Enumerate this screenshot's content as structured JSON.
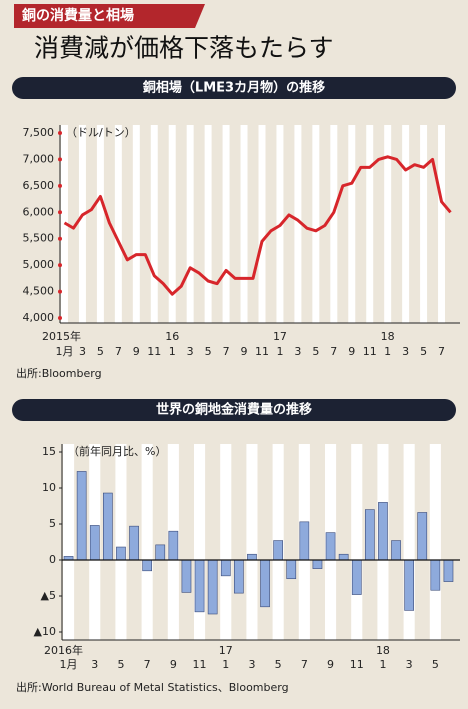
{
  "header": {
    "tag": "銅の消費量と相場",
    "title": "消費減が価格下落もたらす"
  },
  "chart_data": [
    {
      "type": "line",
      "title": "銅相場（LME3カ月物）の推移",
      "y_unit": "（ドル/トン）",
      "source": "出所:Bloomberg",
      "year_labels": [
        "2015年",
        "16",
        "17",
        "18"
      ],
      "categories": [
        "1月",
        null,
        "3",
        null,
        "5",
        null,
        "7",
        null,
        "9",
        null,
        "11",
        null,
        "1",
        null,
        "3",
        null,
        "5",
        null,
        "7",
        null,
        "9",
        null,
        "11",
        null,
        "1",
        null,
        "3",
        null,
        "5",
        null,
        "7",
        null,
        "9",
        null,
        "11",
        null,
        "1",
        null,
        "3",
        null,
        "5",
        null,
        "7",
        null
      ],
      "series": [
        {
          "name": "LME3カ月物",
          "color": "#d7262b",
          "values": [
            5800,
            5700,
            5950,
            6050,
            6300,
            5800,
            5450,
            5100,
            5200,
            5200,
            4800,
            4650,
            4450,
            4600,
            4950,
            4850,
            4700,
            4650,
            4900,
            4750,
            4750,
            4750,
            5450,
            5650,
            5750,
            5950,
            5850,
            5700,
            5650,
            5750,
            6000,
            6500,
            6550,
            6850,
            6850,
            7000,
            7050,
            7000,
            6800,
            6900,
            6850,
            7000,
            6200,
            6000
          ]
        }
      ],
      "ylim": [
        4000,
        7500
      ],
      "yticks": [
        {
          "value": 4000,
          "label": "4,000"
        },
        {
          "value": 4500,
          "label": "4,500"
        },
        {
          "value": 5000,
          "label": "5,000"
        },
        {
          "value": 5500,
          "label": "5,500"
        },
        {
          "value": 6000,
          "label": "6,000"
        },
        {
          "value": 6500,
          "label": "6,500"
        },
        {
          "value": 7000,
          "label": "7,000"
        },
        {
          "value": 7500,
          "label": "7,500"
        }
      ]
    },
    {
      "type": "bar",
      "title": "世界の銅地金消費量の推移",
      "y_unit": "（前年同月比、%）",
      "source": "出所:World Bureau of Metal Statistics、Bloomberg",
      "year_labels": [
        "2016年",
        "17",
        "18"
      ],
      "categories": [
        "1月",
        null,
        "3",
        null,
        "5",
        null,
        "7",
        null,
        "9",
        null,
        "11",
        null,
        "1",
        null,
        "3",
        null,
        "5",
        null,
        "7",
        null,
        "9",
        null,
        "11",
        null,
        "1",
        null,
        "3",
        null,
        "5",
        null
      ],
      "series": [
        {
          "name": "前年同月比",
          "color": "#8eaadc",
          "values": [
            0.5,
            12.3,
            4.8,
            9.3,
            1.8,
            4.7,
            -1.5,
            2.1,
            4.0,
            -4.5,
            -7.2,
            -7.5,
            -2.2,
            -4.6,
            0.8,
            -6.5,
            2.7,
            -2.6,
            5.3,
            -1.2,
            3.8,
            0.8,
            -4.8,
            7.0,
            8.0,
            2.7,
            -7.0,
            6.6,
            -4.2,
            -3.0
          ]
        }
      ],
      "ylim": [
        -10,
        15
      ],
      "yticks": [
        {
          "value": -10,
          "label": "▲10"
        },
        {
          "value": -5,
          "label": "▲5"
        },
        0,
        5,
        10,
        15
      ]
    }
  ]
}
